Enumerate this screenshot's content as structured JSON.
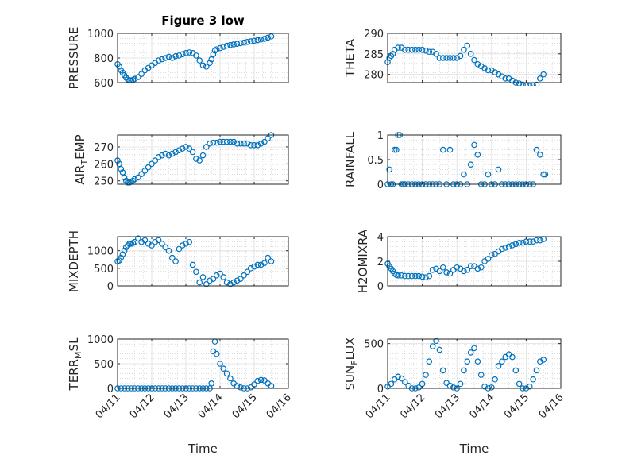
{
  "figure_title": "Figure 3 low",
  "colors": {
    "marker": "#0072BD",
    "axis": "#262626",
    "grid": "#c8c8c8"
  },
  "chart_data": [
    {
      "type": "scatter",
      "position": "row1-left",
      "title": "Figure 3 low",
      "ylabel": "PRESSURE",
      "ylim": [
        600,
        1000
      ],
      "yticks": [
        600,
        800,
        1000
      ],
      "xlim": [
        0,
        5
      ],
      "xticks": [
        0,
        1,
        2,
        3,
        4,
        5
      ],
      "xticklabels": [],
      "x": [
        0.0,
        0.05,
        0.1,
        0.15,
        0.2,
        0.25,
        0.3,
        0.35,
        0.4,
        0.45,
        0.5,
        0.6,
        0.7,
        0.8,
        0.9,
        1.0,
        1.1,
        1.2,
        1.3,
        1.4,
        1.5,
        1.6,
        1.7,
        1.8,
        1.9,
        2.0,
        2.1,
        2.2,
        2.3,
        2.4,
        2.5,
        2.6,
        2.7,
        2.75,
        2.8,
        2.85,
        2.9,
        3.0,
        3.1,
        3.2,
        3.3,
        3.4,
        3.5,
        3.6,
        3.7,
        3.8,
        3.9,
        4.0,
        4.1,
        4.2,
        4.3,
        4.4,
        4.5
      ],
      "y": [
        750,
        730,
        700,
        680,
        660,
        640,
        625,
        620,
        618,
        622,
        630,
        645,
        670,
        700,
        720,
        740,
        760,
        780,
        790,
        800,
        810,
        800,
        815,
        820,
        830,
        840,
        845,
        840,
        820,
        780,
        740,
        730,
        760,
        790,
        830,
        860,
        870,
        880,
        890,
        900,
        905,
        910,
        915,
        920,
        925,
        930,
        935,
        940,
        945,
        950,
        955,
        965,
        975
      ]
    },
    {
      "type": "scatter",
      "position": "row1-right",
      "ylabel": "THETA",
      "ylim": [
        278,
        290
      ],
      "yticks": [
        280,
        285,
        290
      ],
      "xlim": [
        0,
        5
      ],
      "xticks": [
        0,
        1,
        2,
        3,
        4,
        5
      ],
      "xticklabels": [],
      "x": [
        0.0,
        0.05,
        0.1,
        0.15,
        0.2,
        0.3,
        0.4,
        0.5,
        0.6,
        0.7,
        0.8,
        0.9,
        1.0,
        1.1,
        1.2,
        1.3,
        1.4,
        1.5,
        1.6,
        1.7,
        1.8,
        1.9,
        2.0,
        2.1,
        2.2,
        2.3,
        2.4,
        2.5,
        2.6,
        2.7,
        2.8,
        2.9,
        3.0,
        3.1,
        3.2,
        3.3,
        3.4,
        3.5,
        3.6,
        3.7,
        3.8,
        3.9,
        4.0,
        4.1,
        4.2,
        4.3,
        4.4,
        4.5
      ],
      "y": [
        283,
        284,
        284.5,
        285,
        286,
        286.5,
        286.5,
        286,
        286,
        286,
        286,
        286,
        286,
        285.8,
        285.5,
        285.5,
        285,
        284,
        284,
        284,
        284,
        284,
        284,
        284.5,
        286,
        287,
        285,
        283.5,
        282.5,
        282,
        281.5,
        281,
        281,
        280.5,
        280,
        279.5,
        279,
        279,
        278.5,
        278,
        277.8,
        277.5,
        277.3,
        277.2,
        277.3,
        277.5,
        279,
        280
      ]
    },
    {
      "type": "scatter",
      "position": "row2-left",
      "ylabel": "AIR_TEMP",
      "ylim": [
        248,
        277
      ],
      "yticks": [
        250,
        260,
        270
      ],
      "xlim": [
        0,
        5
      ],
      "xticks": [
        0,
        1,
        2,
        3,
        4,
        5
      ],
      "xticklabels": [],
      "x": [
        0.0,
        0.05,
        0.1,
        0.15,
        0.2,
        0.25,
        0.3,
        0.35,
        0.4,
        0.45,
        0.5,
        0.6,
        0.7,
        0.8,
        0.9,
        1.0,
        1.1,
        1.2,
        1.3,
        1.4,
        1.5,
        1.6,
        1.7,
        1.8,
        1.9,
        2.0,
        2.1,
        2.2,
        2.3,
        2.4,
        2.5,
        2.6,
        2.7,
        2.8,
        2.9,
        3.0,
        3.1,
        3.2,
        3.3,
        3.4,
        3.5,
        3.6,
        3.7,
        3.8,
        3.9,
        4.0,
        4.1,
        4.2,
        4.3,
        4.4,
        4.5
      ],
      "y": [
        262,
        260,
        257,
        255,
        252,
        250,
        249,
        249,
        249.5,
        250,
        251,
        252,
        254,
        256,
        258,
        260,
        262,
        264,
        265,
        266,
        265,
        266,
        267,
        268,
        269,
        270,
        269,
        267,
        263,
        262,
        265,
        270,
        272,
        272.5,
        272.5,
        273,
        273,
        273,
        273,
        273,
        272,
        272,
        272,
        272,
        271,
        271,
        271,
        272,
        273,
        275,
        277
      ]
    },
    {
      "type": "scatter",
      "position": "row2-right",
      "ylabel": "RAINFALL",
      "ylim": [
        0,
        1
      ],
      "yticks": [
        0,
        0.5,
        1
      ],
      "xlim": [
        0,
        5
      ],
      "xticks": [
        0,
        1,
        2,
        3,
        4,
        5
      ],
      "xticklabels": [],
      "x": [
        0.0,
        0.05,
        0.1,
        0.15,
        0.2,
        0.25,
        0.3,
        0.35,
        0.4,
        0.45,
        0.5,
        0.6,
        0.7,
        0.8,
        0.9,
        1.0,
        1.1,
        1.2,
        1.3,
        1.4,
        1.5,
        1.6,
        1.7,
        1.8,
        1.9,
        2.0,
        2.1,
        2.2,
        2.3,
        2.4,
        2.5,
        2.6,
        2.7,
        2.8,
        2.9,
        3.0,
        3.1,
        3.2,
        3.3,
        3.4,
        3.5,
        3.6,
        3.7,
        3.8,
        3.9,
        4.0,
        4.1,
        4.2,
        4.3,
        4.4,
        4.5,
        4.55
      ],
      "y": [
        0,
        0.3,
        0,
        0,
        0.7,
        0.7,
        1,
        1,
        0,
        0,
        0,
        0,
        0,
        0,
        0,
        0,
        0,
        0,
        0,
        0,
        0,
        0.7,
        0,
        0.7,
        0,
        0,
        0,
        0.2,
        0,
        0.4,
        0.8,
        0.6,
        0,
        0,
        0.2,
        0,
        0,
        0.3,
        0,
        0,
        0,
        0,
        0,
        0,
        0,
        0,
        0,
        0,
        0.7,
        0.6,
        0.2,
        0.2
      ]
    },
    {
      "type": "scatter",
      "position": "row3-left",
      "ylabel": "MIXDEPTH",
      "ylim": [
        0,
        1400
      ],
      "yticks": [
        0,
        500,
        1000
      ],
      "xlim": [
        0,
        5
      ],
      "xticks": [
        0,
        1,
        2,
        3,
        4,
        5
      ],
      "xticklabels": [],
      "x": [
        0.0,
        0.05,
        0.1,
        0.15,
        0.2,
        0.25,
        0.3,
        0.35,
        0.4,
        0.45,
        0.5,
        0.6,
        0.7,
        0.8,
        0.9,
        1.0,
        1.1,
        1.2,
        1.3,
        1.4,
        1.5,
        1.6,
        1.7,
        1.8,
        1.9,
        2.0,
        2.1,
        2.2,
        2.3,
        2.4,
        2.5,
        2.6,
        2.7,
        2.8,
        2.9,
        3.0,
        3.1,
        3.2,
        3.3,
        3.4,
        3.5,
        3.6,
        3.7,
        3.8,
        3.9,
        4.0,
        4.1,
        4.2,
        4.3,
        4.4,
        4.5
      ],
      "y": [
        700,
        720,
        800,
        900,
        1000,
        1100,
        1150,
        1200,
        1200,
        1220,
        1250,
        1350,
        1250,
        1300,
        1200,
        1150,
        1250,
        1300,
        1200,
        1100,
        1000,
        800,
        700,
        1050,
        1150,
        1200,
        1250,
        600,
        400,
        100,
        250,
        50,
        150,
        200,
        300,
        350,
        250,
        100,
        50,
        100,
        150,
        200,
        300,
        400,
        500,
        550,
        600,
        600,
        650,
        800,
        700
      ]
    },
    {
      "type": "scatter",
      "position": "row3-right",
      "ylabel": "H2OMIXRA",
      "ylim": [
        0,
        4
      ],
      "yticks": [
        0,
        2,
        4
      ],
      "xlim": [
        0,
        5
      ],
      "xticks": [
        0,
        1,
        2,
        3,
        4,
        5
      ],
      "xticklabels": [],
      "x": [
        0.0,
        0.05,
        0.1,
        0.15,
        0.2,
        0.25,
        0.3,
        0.4,
        0.5,
        0.6,
        0.7,
        0.8,
        0.9,
        1.0,
        1.1,
        1.2,
        1.3,
        1.4,
        1.5,
        1.6,
        1.7,
        1.8,
        1.9,
        2.0,
        2.1,
        2.2,
        2.3,
        2.4,
        2.5,
        2.6,
        2.7,
        2.8,
        2.9,
        3.0,
        3.1,
        3.2,
        3.3,
        3.4,
        3.5,
        3.6,
        3.7,
        3.8,
        3.9,
        4.0,
        4.1,
        4.2,
        4.3,
        4.4,
        4.5
      ],
      "y": [
        1.8,
        1.6,
        1.4,
        1.2,
        1.0,
        0.9,
        0.85,
        0.85,
        0.8,
        0.8,
        0.8,
        0.8,
        0.8,
        0.75,
        0.7,
        0.8,
        1.3,
        1.4,
        1.2,
        1.5,
        1.1,
        1.0,
        1.3,
        1.5,
        1.4,
        1.2,
        1.3,
        1.6,
        1.6,
        1.4,
        1.5,
        2.0,
        2.2,
        2.5,
        2.6,
        2.8,
        3.0,
        3.1,
        3.2,
        3.3,
        3.4,
        3.5,
        3.5,
        3.6,
        3.6,
        3.6,
        3.7,
        3.7,
        3.8
      ]
    },
    {
      "type": "scatter",
      "position": "row4-left",
      "ylabel": "TERR_MSL",
      "ylim": [
        0,
        1000
      ],
      "yticks": [
        0,
        500,
        1000
      ],
      "xlim": [
        0,
        5
      ],
      "xticks": [
        0,
        1,
        2,
        3,
        4,
        5
      ],
      "xticklabels": [
        "04/11",
        "04/12",
        "04/13",
        "04/14",
        "04/15",
        "04/16"
      ],
      "xlabel": "Time",
      "x": [
        0.0,
        0.1,
        0.2,
        0.3,
        0.4,
        0.5,
        0.6,
        0.7,
        0.8,
        0.9,
        1.0,
        1.1,
        1.2,
        1.3,
        1.4,
        1.5,
        1.6,
        1.7,
        1.8,
        1.9,
        2.0,
        2.1,
        2.2,
        2.3,
        2.4,
        2.5,
        2.6,
        2.7,
        2.75,
        2.8,
        2.85,
        2.9,
        3.0,
        3.1,
        3.2,
        3.3,
        3.4,
        3.5,
        3.6,
        3.7,
        3.8,
        3.9,
        4.0,
        4.1,
        4.2,
        4.3,
        4.4,
        4.5
      ],
      "y": [
        0,
        0,
        0,
        0,
        0,
        0,
        0,
        0,
        0,
        0,
        0,
        0,
        0,
        0,
        0,
        0,
        0,
        0,
        0,
        0,
        0,
        0,
        0,
        0,
        0,
        0,
        0,
        0,
        100,
        750,
        950,
        700,
        500,
        400,
        300,
        200,
        100,
        50,
        20,
        0,
        0,
        20,
        80,
        150,
        170,
        160,
        100,
        50
      ]
    },
    {
      "type": "scatter",
      "position": "row4-right",
      "ylabel": "SUN_FLUX",
      "ylim": [
        0,
        550
      ],
      "yticks": [
        0,
        500
      ],
      "xlim": [
        0,
        5
      ],
      "xticks": [
        0,
        1,
        2,
        3,
        4,
        5
      ],
      "xticklabels": [
        "04/11",
        "04/12",
        "04/13",
        "04/14",
        "04/15",
        "04/16"
      ],
      "xlabel": "Time",
      "x": [
        0.0,
        0.1,
        0.2,
        0.3,
        0.4,
        0.5,
        0.6,
        0.7,
        0.8,
        0.9,
        1.0,
        1.1,
        1.2,
        1.3,
        1.4,
        1.5,
        1.6,
        1.7,
        1.8,
        1.9,
        2.0,
        2.1,
        2.2,
        2.3,
        2.4,
        2.5,
        2.6,
        2.7,
        2.8,
        2.9,
        3.0,
        3.1,
        3.2,
        3.3,
        3.4,
        3.5,
        3.6,
        3.7,
        3.8,
        3.9,
        4.0,
        4.1,
        4.2,
        4.3,
        4.4,
        4.5
      ],
      "y": [
        20,
        50,
        100,
        130,
        110,
        70,
        30,
        0,
        0,
        10,
        50,
        150,
        300,
        470,
        530,
        430,
        200,
        60,
        30,
        10,
        0,
        50,
        200,
        300,
        400,
        450,
        300,
        150,
        20,
        0,
        10,
        100,
        250,
        300,
        350,
        380,
        350,
        200,
        50,
        0,
        0,
        20,
        100,
        200,
        300,
        320
      ]
    }
  ]
}
